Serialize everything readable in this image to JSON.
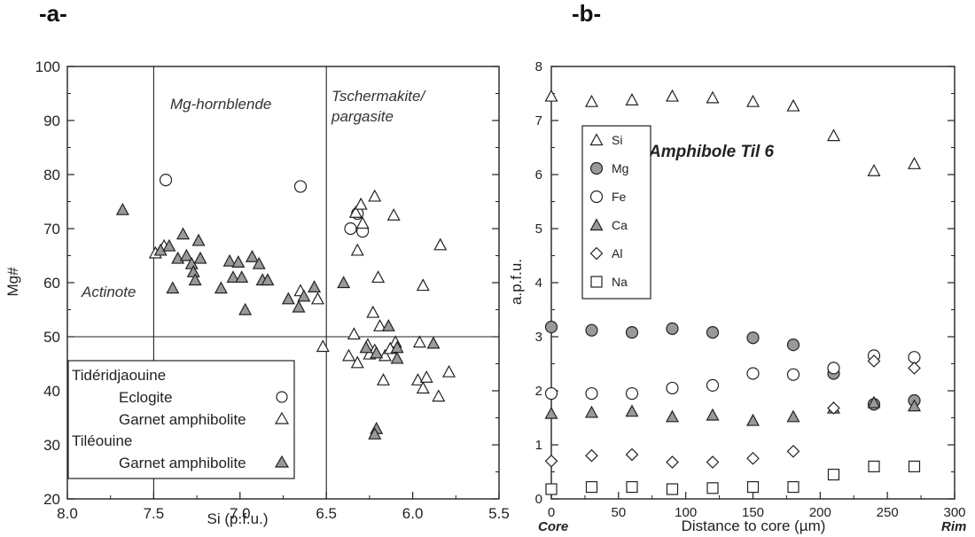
{
  "panels": {
    "a_label": "-a-",
    "b_label": "-b-"
  },
  "chart_data": [
    {
      "type": "scatter",
      "xlabel": "Si (p.f.u.)",
      "ylabel": "Mg#",
      "xlim": [
        8.0,
        5.5
      ],
      "ylim": [
        20,
        100
      ],
      "x_reversed": true,
      "xticks": [
        "8.0",
        "7.5",
        "7.0",
        "6.5",
        "6.0",
        "5.5"
      ],
      "xtick_values": [
        8.0,
        7.5,
        7.0,
        6.5,
        6.0,
        5.5
      ],
      "yticks": [
        "20",
        "30",
        "40",
        "50",
        "60",
        "70",
        "80",
        "90",
        "100"
      ],
      "ytick_values": [
        20,
        30,
        40,
        50,
        60,
        70,
        80,
        90,
        100
      ],
      "boundary_lines": {
        "vertical_si": [
          7.5,
          6.5
        ],
        "horizontal_mg": 50
      },
      "field_labels": {
        "mg_hornblende": "Mg-hornblende",
        "tschermakite_1": "Tschermakite/",
        "tschermakite_2": "pargasite",
        "actinote": "Actinote"
      },
      "legend": {
        "group1": "Tidéridjaouine",
        "eclogite": "Eclogite",
        "garnet_amph_1": "Garnet amphibolite",
        "group2": "Tiléouine",
        "garnet_amph_2": "Garnet amphibolite",
        "position": "bottom-left"
      },
      "series": [
        {
          "name": "Eclogite",
          "marker": "circle-open",
          "points": [
            [
              7.43,
              79
            ],
            [
              6.65,
              77.8
            ],
            [
              6.36,
              70
            ],
            [
              6.32,
              72.8
            ],
            [
              6.29,
              69.5
            ]
          ]
        },
        {
          "name": "Garnet amphibolite",
          "marker": "triangle-open",
          "points": [
            [
              7.49,
              65.5
            ],
            [
              7.44,
              66.8
            ],
            [
              6.65,
              58.5
            ],
            [
              6.55,
              57
            ],
            [
              6.52,
              48.2
            ],
            [
              6.33,
              73
            ],
            [
              6.3,
              74.5
            ],
            [
              6.22,
              76
            ],
            [
              6.11,
              72.5
            ],
            [
              6.29,
              71
            ],
            [
              6.32,
              66
            ],
            [
              6.2,
              61
            ],
            [
              5.94,
              59.5
            ],
            [
              5.84,
              67
            ],
            [
              6.23,
              54.5
            ],
            [
              6.19,
              52
            ],
            [
              6.34,
              50.5
            ],
            [
              6.26,
              48.5
            ],
            [
              6.22,
              47.5
            ],
            [
              6.1,
              49
            ],
            [
              6.37,
              46.5
            ],
            [
              6.32,
              45.2
            ],
            [
              6.25,
              46.8
            ],
            [
              6.16,
              46.5
            ],
            [
              6.13,
              47.8
            ],
            [
              5.96,
              49
            ],
            [
              5.97,
              42
            ],
            [
              5.94,
              40.5
            ],
            [
              5.92,
              42.5
            ],
            [
              5.85,
              39
            ],
            [
              5.79,
              43.5
            ],
            [
              6.17,
              42
            ]
          ]
        },
        {
          "name": "Garnet amphibolite",
          "marker": "triangle-filled",
          "points": [
            [
              7.68,
              73.5
            ],
            [
              7.46,
              66
            ],
            [
              7.41,
              66.8
            ],
            [
              7.36,
              64.5
            ],
            [
              7.33,
              69
            ],
            [
              7.31,
              65
            ],
            [
              7.28,
              63.5
            ],
            [
              7.27,
              62
            ],
            [
              7.26,
              60.5
            ],
            [
              7.24,
              67.8
            ],
            [
              7.23,
              64.5
            ],
            [
              7.39,
              59
            ],
            [
              7.11,
              59
            ],
            [
              7.06,
              64
            ],
            [
              7.04,
              61
            ],
            [
              7.01,
              63.8
            ],
            [
              6.99,
              61
            ],
            [
              6.97,
              55
            ],
            [
              6.93,
              64.8
            ],
            [
              6.89,
              63.5
            ],
            [
              6.87,
              60.5
            ],
            [
              6.84,
              60.5
            ],
            [
              6.72,
              57
            ],
            [
              6.63,
              57.5
            ],
            [
              6.57,
              59.2
            ],
            [
              6.66,
              55.5
            ],
            [
              6.4,
              60
            ],
            [
              6.27,
              48
            ],
            [
              6.21,
              47
            ],
            [
              6.09,
              46
            ],
            [
              6.14,
              52
            ],
            [
              6.09,
              48
            ],
            [
              5.88,
              48.8
            ],
            [
              6.21,
              33
            ],
            [
              6.22,
              32
            ]
          ]
        }
      ]
    },
    {
      "type": "scatter",
      "title": "Amphibole Til 6",
      "xlabel": "Distance to core (µm)",
      "ylabel": "a.p.f.u.",
      "xlim": [
        0,
        300
      ],
      "ylim": [
        0,
        8
      ],
      "xticks": [
        "0",
        "50",
        "100",
        "150",
        "200",
        "250",
        "300"
      ],
      "xtick_values": [
        0,
        50,
        100,
        150,
        200,
        250,
        300
      ],
      "yticks": [
        "0",
        "1",
        "2",
        "3",
        "4",
        "5",
        "6",
        "7",
        "8"
      ],
      "ytick_values": [
        0,
        1,
        2,
        3,
        4,
        5,
        6,
        7,
        8
      ],
      "x_end_labels": {
        "left": "Core",
        "right": "Rim"
      },
      "legend_position": "top-left",
      "x": [
        0,
        30,
        60,
        90,
        120,
        150,
        180,
        210,
        240,
        270
      ],
      "series": [
        {
          "name": "Si",
          "marker": "triangle-open",
          "values": [
            7.45,
            7.35,
            7.38,
            7.45,
            7.42,
            7.35,
            7.27,
            6.72,
            6.07,
            6.2
          ]
        },
        {
          "name": "Mg",
          "marker": "circle-filled",
          "values": [
            3.18,
            3.12,
            3.08,
            3.15,
            3.08,
            2.98,
            2.85,
            2.32,
            1.75,
            1.82
          ]
        },
        {
          "name": "Fe",
          "marker": "circle-open",
          "values": [
            1.95,
            1.95,
            1.95,
            2.05,
            2.1,
            2.32,
            2.3,
            2.42,
            2.65,
            2.62
          ]
        },
        {
          "name": "Ca",
          "marker": "triangle-filled",
          "values": [
            1.58,
            1.6,
            1.62,
            1.52,
            1.55,
            1.45,
            1.52,
            1.68,
            1.78,
            1.72
          ]
        },
        {
          "name": "Al",
          "marker": "diamond-open",
          "values": [
            0.7,
            0.8,
            0.82,
            0.68,
            0.68,
            0.75,
            0.88,
            1.68,
            2.55,
            2.42
          ]
        },
        {
          "name": "Na",
          "marker": "square-open",
          "values": [
            0.18,
            0.22,
            0.22,
            0.18,
            0.2,
            0.22,
            0.22,
            0.45,
            0.6,
            0.6
          ]
        }
      ]
    }
  ]
}
